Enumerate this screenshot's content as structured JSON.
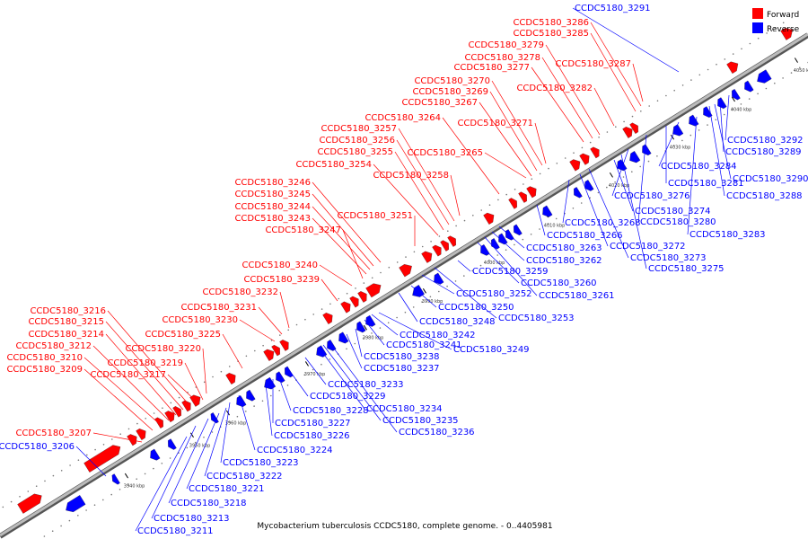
{
  "title": "Mycobacterium tuberculosis CCDC5180, complete genome. - 0..4405981",
  "legend": [
    {
      "name": "Forward",
      "color": "#ff0000"
    },
    {
      "name": "Reverse",
      "color": "#0000ff"
    }
  ],
  "colors": {
    "forward": "#ff0000",
    "reverse": "#0000ff",
    "backbone": "#999999"
  },
  "ticks": [
    "3940 kbp",
    "3950 kbp",
    "3960 kbp",
    "3970 kbp",
    "3980 kbp",
    "3990 kbp",
    "4000 kbp",
    "4010 kbp",
    "4020 kbp",
    "4030 kbp",
    "4040 kbp",
    "4050 kbp"
  ],
  "forward_labels": [
    "CCDC5180_3207",
    "CCDC5180_3209",
    "CCDC5180_3210",
    "CCDC5180_3212",
    "CCDC5180_3214",
    "CCDC5180_3215",
    "CCDC5180_3216",
    "CCDC5180_3217",
    "CCDC5180_3219",
    "CCDC5180_3220",
    "CCDC5180_3225",
    "CCDC5180_3230",
    "CCDC5180_3231",
    "CCDC5180_3232",
    "CCDC5180_3239",
    "CCDC5180_3240",
    "CCDC5180_3247",
    "CCDC5180_3243",
    "CCDC5180_3244",
    "CCDC5180_3245",
    "CCDC5180_3246",
    "CCDC5180_3251",
    "CCDC5180_3254",
    "CCDC5180_3255",
    "CCDC5180_3256",
    "CCDC5180_3257",
    "CCDC5180_3258",
    "CCDC5180_3264",
    "CCDC5180_3265",
    "CCDC5180_3267",
    "CCDC5180_3269",
    "CCDC5180_3270",
    "CCDC5180_3271",
    "CCDC5180_3277",
    "CCDC5180_3278",
    "CCDC5180_3279",
    "CCDC5180_3282",
    "CCDC5180_3285",
    "CCDC5180_3286",
    "CCDC5180_3287"
  ],
  "reverse_labels": [
    "CCDC5180_3291",
    "CCDC5180_3206",
    "CCDC5180_3211",
    "CCDC5180_3213",
    "CCDC5180_3218",
    "CCDC5180_3221",
    "CCDC5180_3222",
    "CCDC5180_3223",
    "CCDC5180_3224",
    "CCDC5180_3226",
    "CCDC5180_3227",
    "CCDC5180_3228",
    "CCDC5180_3229",
    "CCDC5180_3233",
    "CCDC5180_3234",
    "CCDC5180_3235",
    "CCDC5180_3236",
    "CCDC5180_3237",
    "CCDC5180_3238",
    "CCDC5180_3241",
    "CCDC5180_3242",
    "CCDC5180_3248",
    "CCDC5180_3249",
    "CCDC5180_3250",
    "CCDC5180_3252",
    "CCDC5180_3253",
    "CCDC5180_3259",
    "CCDC5180_3260",
    "CCDC5180_3261",
    "CCDC5180_3262",
    "CCDC5180_3263",
    "CCDC5180_3266",
    "CCDC5180_3268",
    "CCDC5180_3272",
    "CCDC5180_3273",
    "CCDC5180_3274",
    "CCDC5180_3275",
    "CCDC5180_3276",
    "CCDC5180_3280",
    "CCDC5180_3281",
    "CCDC5180_3283",
    "CCDC5180_3284",
    "CCDC5180_3288",
    "CCDC5180_3289",
    "CCDC5180_3290",
    "CCDC5180_3292"
  ]
}
